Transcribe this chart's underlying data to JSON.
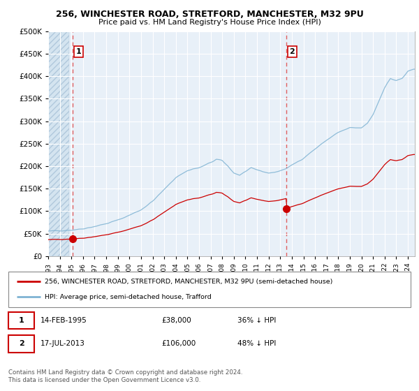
{
  "title1": "256, WINCHESTER ROAD, STRETFORD, MANCHESTER, M32 9PU",
  "title2": "Price paid vs. HM Land Registry's House Price Index (HPI)",
  "legend_line1": "256, WINCHESTER ROAD, STRETFORD, MANCHESTER, M32 9PU (semi-detached house)",
  "legend_line2": "HPI: Average price, semi-detached house, Trafford",
  "ann1_label": "1",
  "ann1_date": "14-FEB-1995",
  "ann1_price": "£38,000",
  "ann1_pct": "36% ↓ HPI",
  "ann2_label": "2",
  "ann2_date": "17-JUL-2013",
  "ann2_price": "£106,000",
  "ann2_pct": "48% ↓ HPI",
  "footnote": "Contains HM Land Registry data © Crown copyright and database right 2024.\nThis data is licensed under the Open Government Licence v3.0.",
  "sale1_year": 1995.12,
  "sale1_price": 38000,
  "sale2_year": 2013.54,
  "sale2_price": 106000,
  "hpi_color": "#7fb3d3",
  "sale_color": "#cc0000",
  "vline_color": "#e06060",
  "bg_hatch_color": "#d4e4f0",
  "bg_plain_color": "#e8f0f8",
  "grid_color": "#c0cfe0",
  "ylim_max": 500000,
  "xlabel_start": 1993,
  "xlabel_end": 2024
}
